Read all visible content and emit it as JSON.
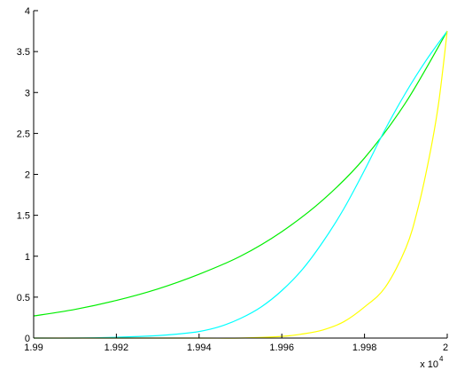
{
  "chart_data": {
    "type": "line",
    "title": "",
    "xlabel": "",
    "ylabel": "",
    "xlim": [
      19900,
      20000
    ],
    "ylim": [
      0,
      4
    ],
    "grid": false,
    "x_multiplier": "x 10",
    "x_exponent": "4",
    "x_ticks": [
      19900,
      19920,
      19940,
      19960,
      19980,
      20000
    ],
    "x_tick_labels": [
      "1.99",
      "1.992",
      "1.994",
      "1.996",
      "1.998",
      "2"
    ],
    "y_ticks": [
      0,
      0.5,
      1,
      1.5,
      2,
      2.5,
      3,
      3.5,
      4
    ],
    "y_tick_labels": [
      "0",
      "0.5",
      "1",
      "1.5",
      "2",
      "2.5",
      "3",
      "3.5",
      "4"
    ],
    "series": [
      {
        "color": "#00ee00",
        "x": [
          19900,
          19910,
          19920,
          19930,
          19940,
          19950,
          19960,
          19970,
          19980,
          19990,
          20000
        ],
        "y": [
          0.27,
          0.35,
          0.46,
          0.6,
          0.78,
          1.0,
          1.3,
          1.69,
          2.2,
          2.88,
          3.75
        ]
      },
      {
        "color": "#00ffff",
        "x": [
          19900,
          19910,
          19920,
          19930,
          19935,
          19940,
          19945,
          19950,
          19955,
          19960,
          19965,
          19970,
          19975,
          19980,
          19985,
          19990,
          19995,
          20000
        ],
        "y": [
          0.0,
          0.0,
          0.01,
          0.03,
          0.05,
          0.08,
          0.14,
          0.24,
          0.38,
          0.58,
          0.84,
          1.18,
          1.58,
          2.05,
          2.55,
          3.0,
          3.4,
          3.75
        ]
      },
      {
        "color": "#ffff00",
        "x": [
          19900,
          19920,
          19940,
          19950,
          19960,
          19965,
          19970,
          19975,
          19980,
          19985,
          19990,
          19993,
          19996,
          19998,
          20000
        ],
        "y": [
          0.0,
          0.0,
          0.0,
          0.0,
          0.02,
          0.05,
          0.1,
          0.2,
          0.38,
          0.62,
          1.1,
          1.6,
          2.3,
          2.9,
          3.75
        ]
      }
    ]
  }
}
